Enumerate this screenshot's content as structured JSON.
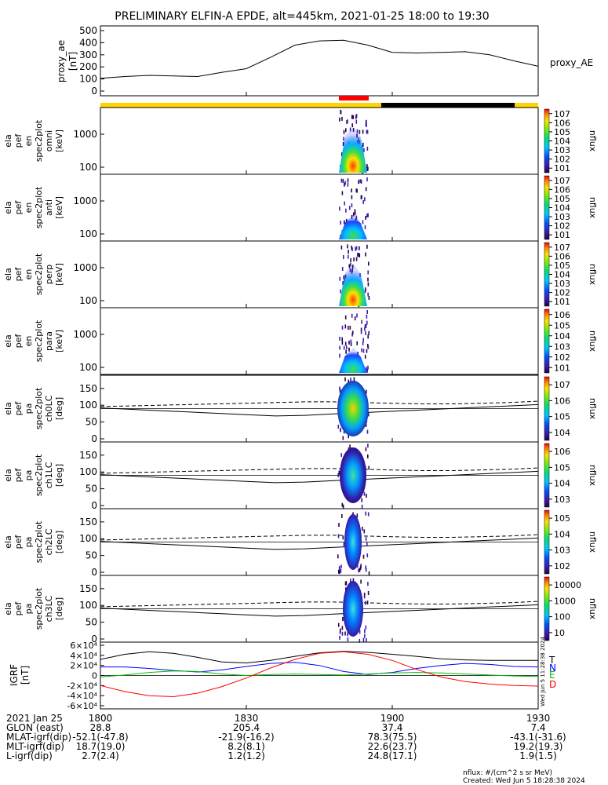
{
  "title": "PRELIMINARY ELFIN-A EPDE, alt=445km, 2021-01-25 18:00 to 19:30",
  "colors": {
    "yellow": "#ffd400",
    "black": "#000000",
    "red": "#ff0000",
    "blue": "#0000ff",
    "green": "#00c000"
  },
  "proxy_panel": {
    "ylabel": [
      "proxy_ae",
      "[nT]"
    ],
    "series_label": "proxy_AE",
    "yticks": [
      "0",
      "100",
      "200",
      "300",
      "400",
      "500"
    ]
  },
  "spec_panels": [
    {
      "ylabel": [
        "ela",
        "pef",
        "en",
        "spec2plot",
        "omni",
        "[keV]"
      ],
      "yticks": [
        "100",
        "1000"
      ],
      "cbar_label": "nflux",
      "cbar_ticks": [
        "101",
        "102",
        "103",
        "104",
        "105",
        "106",
        "107"
      ]
    },
    {
      "ylabel": [
        "ela",
        "pef",
        "en",
        "spec2plot",
        "anti",
        "[keV]"
      ],
      "yticks": [
        "100",
        "1000"
      ],
      "cbar_label": "nflux",
      "cbar_ticks": [
        "101",
        "102",
        "103",
        "104",
        "105",
        "106",
        "107"
      ]
    },
    {
      "ylabel": [
        "ela",
        "pef",
        "en",
        "spec2plot",
        "perp",
        "[keV]"
      ],
      "yticks": [
        "100",
        "1000"
      ],
      "cbar_label": "nflux",
      "cbar_ticks": [
        "101",
        "102",
        "103",
        "104",
        "105",
        "106",
        "107"
      ]
    },
    {
      "ylabel": [
        "ela",
        "pef",
        "en",
        "spec2plot",
        "para",
        "[keV]"
      ],
      "yticks": [
        "100",
        "1000"
      ],
      "cbar_label": "nflux",
      "cbar_ticks": [
        "101",
        "102",
        "103",
        "104",
        "105",
        "106"
      ]
    }
  ],
  "pa_panels": [
    {
      "ylabel": [
        "ela",
        "pef",
        "pa",
        "spec2plot",
        "ch0LC",
        "[deg]"
      ],
      "yticks": [
        "0",
        "50",
        "100",
        "150"
      ],
      "cbar_label": "nflux",
      "cbar_ticks": [
        "104",
        "105",
        "106",
        "107"
      ]
    },
    {
      "ylabel": [
        "ela",
        "pef",
        "pa",
        "spec2plot",
        "ch1LC",
        "[deg]"
      ],
      "yticks": [
        "0",
        "50",
        "100",
        "150"
      ],
      "cbar_label": "nflux",
      "cbar_ticks": [
        "103",
        "104",
        "105",
        "106"
      ]
    },
    {
      "ylabel": [
        "ela",
        "pef",
        "pa",
        "spec2plot",
        "ch2LC",
        "[deg]"
      ],
      "yticks": [
        "0",
        "50",
        "100",
        "150"
      ],
      "cbar_label": "nflux",
      "cbar_ticks": [
        "102",
        "103",
        "104",
        "105"
      ]
    },
    {
      "ylabel": [
        "ela",
        "pef",
        "pa",
        "spec2plot",
        "ch3LC",
        "[deg]"
      ],
      "yticks": [
        "0",
        "50",
        "100",
        "150"
      ],
      "cbar_label": "nflux",
      "cbar_ticks": [
        "10",
        "100",
        "1000",
        "10000"
      ]
    }
  ],
  "igrf_panel": {
    "ylabel": [
      "IGRF",
      "[nT]"
    ],
    "yticks": [
      "-6×10⁴",
      "-4×10⁴",
      "-2×10⁴",
      "0",
      "2×10⁴",
      "4×10⁴",
      "6×10⁴"
    ],
    "legend": [
      "T",
      "N",
      "E",
      "D"
    ],
    "side_stamp": "Wed Jun  5 11:28:38 2024"
  },
  "chart_data": {
    "type": "line",
    "title": "PRELIMINARY ELFIN-A EPDE, alt=445km, 2021-01-25 18:00 to 19:30",
    "x_ticks": [
      "1800",
      "1830",
      "1900",
      "1930"
    ],
    "x_time_minutes": [
      0,
      5,
      10,
      15,
      20,
      25,
      30,
      35,
      40,
      45,
      50,
      55,
      60,
      65,
      70,
      75,
      80,
      85,
      90
    ],
    "series": [
      {
        "name": "proxy_AE",
        "values": [
          105,
          120,
          130,
          125,
          120,
          155,
          185,
          280,
          380,
          415,
          420,
          380,
          320,
          315,
          320,
          325,
          300,
          250,
          205
        ]
      }
    ],
    "ylim": [
      0,
      550
    ],
    "igrf_series": [
      {
        "name": "T",
        "values": [
          32000,
          42000,
          47000,
          44000,
          36000,
          27000,
          25000,
          30000,
          38000,
          45000,
          48000,
          46000,
          42000,
          38000,
          33000,
          31000,
          30000,
          30000,
          30000
        ]
      },
      {
        "name": "N",
        "values": [
          17000,
          17000,
          14000,
          10000,
          7000,
          11000,
          18000,
          24000,
          26000,
          20000,
          8000,
          2000,
          6000,
          14000,
          20000,
          24000,
          22000,
          18000,
          17000
        ]
      },
      {
        "name": "E",
        "values": [
          -3000,
          1000,
          6000,
          9000,
          8000,
          3000,
          0,
          2000,
          3000,
          2000,
          1000,
          3000,
          5000,
          6000,
          5000,
          3000,
          1000,
          -1000,
          -2000
        ]
      },
      {
        "name": "D",
        "values": [
          -20000,
          -32000,
          -40000,
          -42000,
          -35000,
          -22000,
          -5000,
          15000,
          32000,
          44000,
          47000,
          42000,
          30000,
          12000,
          -3000,
          -12000,
          -17000,
          -20000,
          -21000
        ]
      }
    ],
    "igrf_ylim": [
      -60000,
      60000
    ],
    "lc_line_deg": [
      92,
      88,
      84,
      80,
      76,
      72,
      68,
      70,
      74,
      78,
      82,
      86,
      90,
      94,
      98,
      102
    ],
    "alc_line_deg": [
      96,
      98,
      100,
      102,
      104,
      106,
      108,
      110,
      110,
      108,
      106,
      104,
      104,
      106,
      108,
      112
    ]
  },
  "footer": {
    "rows": [
      {
        "label": "2021 Jan 25",
        "values": [
          "1800",
          "1830",
          "1900",
          "1930"
        ]
      },
      {
        "label": "GLON (east)",
        "values": [
          "28.8",
          "205.4",
          "37.4",
          "7.4"
        ]
      },
      {
        "label": "MLAT-igrf(dip)",
        "values": [
          "-52.1(-47.8)",
          "-21.9(-16.2)",
          "78.3(75.5)",
          "-43.1(-31.6)"
        ]
      },
      {
        "label": "MLT-igrf(dip)",
        "values": [
          "18.7(19.0)",
          "8.2(8.1)",
          "22.6(23.7)",
          "19.2(19.3)"
        ]
      },
      {
        "label": "L-igrf(dip)",
        "values": [
          "2.7(2.4)",
          "1.2(1.2)",
          "24.8(17.1)",
          "1.9(1.5)"
        ]
      }
    ],
    "units_note": "nflux: #/(cm^2 s sr MeV)",
    "created": "Created: Wed Jun  5 18:28:38 2024"
  }
}
